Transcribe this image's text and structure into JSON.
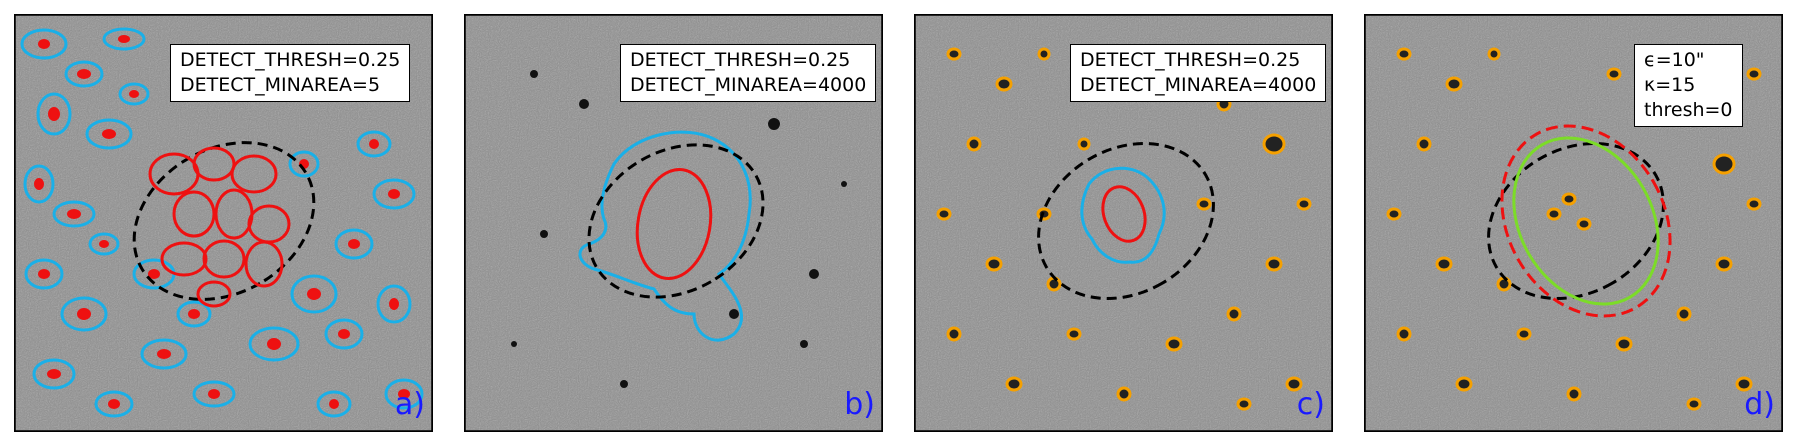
{
  "panels": [
    {
      "label": "a)",
      "legend": [
        "DETECT_THRESH=0.25",
        "DETECT_MINAREA=5"
      ],
      "background_tone": "#8c8c8c"
    },
    {
      "label": "b)",
      "legend": [
        "DETECT_THRESH=0.25",
        "DETECT_MINAREA=4000"
      ],
      "background_tone": "#8a8a8a"
    },
    {
      "label": "c)",
      "legend": [
        "DETECT_THRESH=0.25",
        "DETECT_MINAREA=4000"
      ],
      "background_tone": "#8c8c8c"
    },
    {
      "label": "d)",
      "legend": [
        "ϵ=10\"",
        "κ=15",
        "thresh=0"
      ],
      "background_tone": "#8c8c8c"
    }
  ],
  "colors": {
    "cyan": "#1ab0e8",
    "red": "#ee1111",
    "orange": "#f5a000",
    "green": "#7cdc28",
    "black": "#000000",
    "label_blue": "#1a1aff"
  }
}
